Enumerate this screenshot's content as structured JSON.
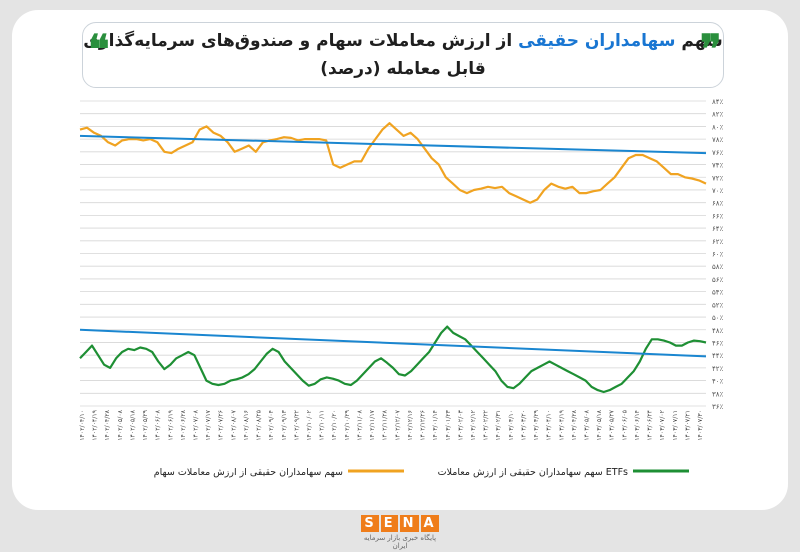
{
  "header": {
    "title_part1": "سهم ",
    "title_highlight": "سهامداران حقیقی",
    "title_part2": " از ارزش معاملات سهام و صندوق‌های سرمایه‌گذاری",
    "subtitle": "قابل معامله (درصد)",
    "quote_open": "❝",
    "quote_close": "❞"
  },
  "brand": {
    "logo": [
      "S",
      "E",
      "N",
      "A"
    ],
    "tagline": "پایگاه خبری بازار سرمایه ایران"
  },
  "colors": {
    "orange": "#f0a321",
    "green": "#1e8f34",
    "blue": "#1a86d0"
  },
  "chart_data": {
    "type": "line",
    "ylim": [
      36,
      84
    ],
    "y_ticks": [
      "۳۶٪",
      "۳۸٪",
      "۴۰٪",
      "۴۲٪",
      "۴۴٪",
      "۴۶٪",
      "۴۸٪",
      "۵۰٪",
      "۵۲٪",
      "۵۴٪",
      "۵۶٪",
      "۵۸٪",
      "۶۰٪",
      "۶۲٪",
      "۶۴٪",
      "۶۶٪",
      "۶۸٪",
      "۷۰٪",
      "۷۲٪",
      "۷۴٪",
      "۷۶٪",
      "۷۸٪",
      "۸۰٪",
      "۸۲٪",
      "۸۴٪"
    ],
    "x_ticks": [
      "۱۴۰۲/۰۴/۱۰",
      "۱۴۰۲/۰۴/۱۹",
      "۱۴۰۲/۰۴/۲۸",
      "۱۴۰۲/۰۵/۰۸",
      "۱۴۰۲/۰۵/۱۸",
      "۱۴۰۲/۰۵/۲۹",
      "۱۴۰۲/۰۶/۰۸",
      "۱۴۰۲/۰۶/۱۹",
      "۱۴۰۲/۰۶/۲۸",
      "۱۴۰۲/۰۷/۰۸",
      "۱۴۰۲/۰۷/۱۷",
      "۱۴۰۲/۰۷/۲۶",
      "۱۴۰۲/۰۸/۰۷",
      "۱۴۰۲/۰۸/۱۶",
      "۱۴۰۲/۰۸/۲۵",
      "۱۴۰۲/۰۹/۰۴",
      "۱۴۰۲/۰۹/۱۳",
      "۱۴۰۲/۰۹/۲۲",
      "۱۴۰۲/۱۰/۰۲",
      "۱۴۰۲/۱۰/۱۱",
      "۱۴۰۲/۱۰/۲۰",
      "۱۴۰۲/۱۰/۲۹",
      "۱۴۰۲/۱۱/۰۸",
      "۱۴۰۲/۱۱/۱۷",
      "۱۴۰۲/۱۱/۲۸",
      "۱۴۰۲/۱۲/۰۷",
      "۱۴۰۲/۱۲/۱۶",
      "۱۴۰۲/۱۲/۲۶",
      "۱۴۰۳/۰۱/۱۴",
      "۱۴۰۳/۰۱/۲۳",
      "۱۴۰۳/۰۲/۰۳",
      "۱۴۰۳/۰۲/۱۲",
      "۱۴۰۳/۰۲/۲۲",
      "۱۴۰۳/۰۲/۳۱",
      "۱۴۰۳/۰۳/۱۰",
      "۱۴۰۳/۰۳/۲۰",
      "۱۴۰۳/۰۳/۲۹",
      "۱۴۰۳/۰۴/۱۰",
      "۱۴۰۳/۰۴/۱۹",
      "۱۴۰۳/۰۴/۲۸",
      "۱۴۰۳/۰۵/۰۸",
      "۱۴۰۳/۰۵/۱۸",
      "۱۴۰۳/۰۵/۲۷",
      "۱۴۰۳/۰۶/۰۵",
      "۱۴۰۳/۰۶/۱۴",
      "۱۴۰۳/۰۶/۲۴",
      "۱۴۰۳/۰۷/۰۲",
      "۱۴۰۳/۰۷/۱۱",
      "۱۴۰۳/۰۷/۲۱",
      "۱۴۰۳/۰۷/۳۰"
    ],
    "series": [
      {
        "name": "سهم سهامداران حقیقی از ارزش معاملات سهام",
        "color": "#f0a321",
        "values": [
          79.5,
          79.8,
          79.0,
          78.5,
          77.5,
          77.0,
          77.8,
          78.0,
          78.0,
          77.8,
          78.0,
          77.5,
          76.0,
          75.8,
          76.5,
          77.0,
          77.5,
          79.5,
          80.0,
          79.0,
          78.5,
          77.5,
          76.0,
          76.5,
          77.0,
          76.0,
          77.5,
          77.8,
          78.0,
          78.3,
          78.2,
          77.8,
          78.0,
          78.0,
          78.0,
          77.8,
          74.0,
          73.5,
          74.0,
          74.5,
          74.5,
          76.5,
          78.0,
          79.5,
          80.5,
          79.5,
          78.5,
          79.0,
          78.0,
          76.5,
          75.0,
          74.0,
          72.0,
          71.0,
          70.0,
          69.5,
          70.0,
          70.2,
          70.5,
          70.3,
          70.5,
          69.5,
          69.0,
          68.5,
          68.0,
          68.5,
          70.0,
          71.0,
          70.5,
          70.2,
          70.5,
          69.5,
          69.5,
          69.8,
          70.0,
          71.0,
          72.0,
          73.5,
          75.0,
          75.5,
          75.5,
          75.0,
          74.5,
          73.5,
          72.5,
          72.5,
          72.0,
          71.8,
          71.5,
          71.0
        ]
      },
      {
        "name": "سهم سهامداران حقیقی از ارزش معاملات ETFs",
        "color": "#1e8f34",
        "values": [
          43.5,
          44.5,
          45.5,
          44.0,
          42.5,
          42.0,
          43.5,
          44.5,
          45.0,
          44.8,
          45.2,
          45.0,
          44.5,
          43.0,
          41.8,
          42.5,
          43.5,
          44.0,
          44.5,
          44.0,
          42.0,
          40.0,
          39.5,
          39.3,
          39.5,
          40.0,
          40.2,
          40.5,
          41.0,
          41.8,
          43.0,
          44.2,
          45.0,
          44.5,
          43.0,
          42.0,
          41.0,
          40.0,
          39.2,
          39.5,
          40.2,
          40.5,
          40.3,
          40.0,
          39.5,
          39.3,
          40.0,
          41.0,
          42.0,
          43.0,
          43.5,
          42.8,
          42.0,
          41.0,
          40.8,
          41.5,
          42.5,
          43.5,
          44.5,
          46.0,
          47.5,
          48.5,
          47.5,
          47.0,
          46.5,
          45.5,
          44.5,
          43.5,
          42.5,
          41.5,
          40.0,
          39.0,
          38.8,
          39.5,
          40.5,
          41.5,
          42.0,
          42.5,
          43.0,
          42.5,
          42.0,
          41.5,
          41.0,
          40.5,
          40.0,
          39.0,
          38.5,
          38.2,
          38.5,
          39.0,
          39.5,
          40.5,
          41.5,
          43.0,
          45.0,
          46.5,
          46.5,
          46.3,
          46.0,
          45.5,
          45.5,
          46.0,
          46.3,
          46.2,
          46.0
        ]
      },
      {
        "name": "",
        "color": "#1a86d0",
        "values": [
          78.5,
          75.8
        ]
      },
      {
        "name": "",
        "color": "#1a86d0",
        "values": [
          48.0,
          43.8
        ]
      }
    ]
  }
}
